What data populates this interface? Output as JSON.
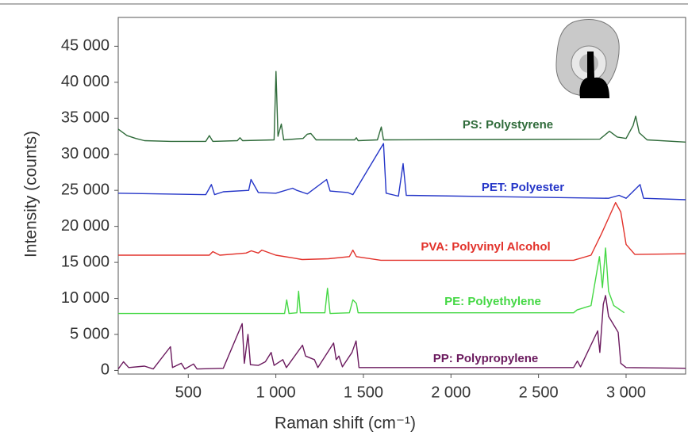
{
  "chart_data": {
    "type": "line",
    "ylabel": "Intensity (counts)",
    "xlabel": "Raman shift (cm⁻¹)",
    "xlim": [
      100,
      3340
    ],
    "ylim": [
      -500,
      49000
    ],
    "xticks": [
      500,
      {
        "value": 1000,
        "label": "1 000"
      },
      {
        "value": 1500,
        "label": "1 500"
      },
      {
        "value": 2000,
        "label": "2 000"
      },
      {
        "value": 2500,
        "label": "2 500"
      },
      {
        "value": 3000,
        "label": "3 000"
      }
    ],
    "yticks": [
      0,
      {
        "value": 5000,
        "label": "5 000"
      },
      {
        "value": 10000,
        "label": "10 000"
      },
      {
        "value": 15000,
        "label": "15 000"
      },
      {
        "value": 20000,
        "label": "20 000"
      },
      {
        "value": 25000,
        "label": "25 000"
      },
      {
        "value": 30000,
        "label": "30 000"
      },
      {
        "value": 35000,
        "label": "35 000"
      },
      {
        "value": 40000,
        "label": "40 000"
      },
      {
        "value": 45000,
        "label": "45 000"
      }
    ],
    "series": [
      {
        "name": "PS: Polystyrene",
        "color": "#2f6b3a",
        "x": [
          100,
          150,
          200,
          250,
          400,
          600,
          620,
          640,
          780,
          795,
          810,
          990,
          1001,
          1012,
          1031,
          1045,
          1155,
          1180,
          1200,
          1230,
          1450,
          1460,
          1470,
          1580,
          1602,
          1615,
          2850,
          2905,
          2950,
          3000,
          3040,
          3055,
          3075,
          3120,
          3340
        ],
        "values": [
          33500,
          32600,
          32200,
          31900,
          31800,
          31800,
          32600,
          31800,
          31900,
          32300,
          31900,
          32000,
          41500,
          32500,
          34200,
          32000,
          32200,
          32800,
          32900,
          32000,
          32000,
          32300,
          31900,
          32000,
          33800,
          32000,
          32100,
          33200,
          32400,
          32200,
          34000,
          35300,
          33000,
          32000,
          31700
        ]
      },
      {
        "name": "PET: Polyester",
        "color": "#2536c8",
        "x": [
          100,
          600,
          632,
          650,
          700,
          845,
          858,
          900,
          1000,
          1096,
          1120,
          1180,
          1290,
          1310,
          1410,
          1440,
          1615,
          1630,
          1700,
          1727,
          1745,
          2900,
          2960,
          3000,
          3080,
          3100,
          3340
        ],
        "values": [
          24600,
          24400,
          25800,
          24400,
          24800,
          25000,
          26500,
          24700,
          24600,
          25300,
          25000,
          24500,
          26500,
          24900,
          24700,
          24400,
          31500,
          24600,
          24200,
          28700,
          24300,
          23900,
          24300,
          23900,
          25800,
          23900,
          23700
        ]
      },
      {
        "name": "PVA: Polyvinyl Alcohol",
        "color": "#e2322b",
        "x": [
          100,
          620,
          640,
          680,
          830,
          860,
          900,
          920,
          1000,
          1100,
          1150,
          1300,
          1420,
          1440,
          1460,
          1600,
          2700,
          2800,
          2860,
          2940,
          2970,
          3000,
          3050,
          3340
        ],
        "values": [
          16000,
          16000,
          16500,
          16000,
          16300,
          16600,
          16300,
          16700,
          16000,
          15600,
          15400,
          15500,
          15800,
          16700,
          15800,
          15300,
          15300,
          16000,
          19000,
          23300,
          22000,
          17500,
          16100,
          16200
        ]
      },
      {
        "name": "PE: Polyethylene",
        "color": "#45d845",
        "x": [
          100,
          1050,
          1062,
          1075,
          1120,
          1130,
          1140,
          1280,
          1295,
          1310,
          1420,
          1440,
          1460,
          1470,
          2700,
          2720,
          2800,
          2848,
          2865,
          2883,
          2900,
          2930,
          2990
        ],
        "values": [
          7900,
          7900,
          9800,
          7900,
          8000,
          11000,
          8000,
          8000,
          11400,
          7900,
          8000,
          9800,
          9300,
          8000,
          8000,
          8400,
          9000,
          15800,
          11500,
          17000,
          11000,
          9000,
          8000
        ]
      },
      {
        "name": "PP: Polypropylene",
        "color": "#6b1a5e",
        "x": [
          100,
          130,
          160,
          250,
          300,
          398,
          410,
          460,
          480,
          530,
          550,
          700,
          808,
          820,
          841,
          855,
          900,
          940,
          973,
          990,
          1040,
          1060,
          1152,
          1170,
          1220,
          1240,
          1330,
          1345,
          1360,
          1380,
          1435,
          1458,
          1475,
          2700,
          2722,
          2740,
          2838,
          2850,
          2870,
          2883,
          2900,
          2920,
          2955,
          2970,
          3000,
          3340
        ],
        "values": [
          200,
          1200,
          400,
          600,
          200,
          3300,
          400,
          1000,
          200,
          900,
          200,
          300,
          6500,
          1000,
          5000,
          800,
          700,
          1200,
          2500,
          700,
          1500,
          400,
          3500,
          2000,
          1500,
          400,
          3800,
          1500,
          2000,
          500,
          2500,
          4100,
          400,
          400,
          1300,
          500,
          5500,
          2500,
          9200,
          10400,
          7500,
          6700,
          5300,
          1000,
          400,
          300
        ]
      }
    ]
  }
}
